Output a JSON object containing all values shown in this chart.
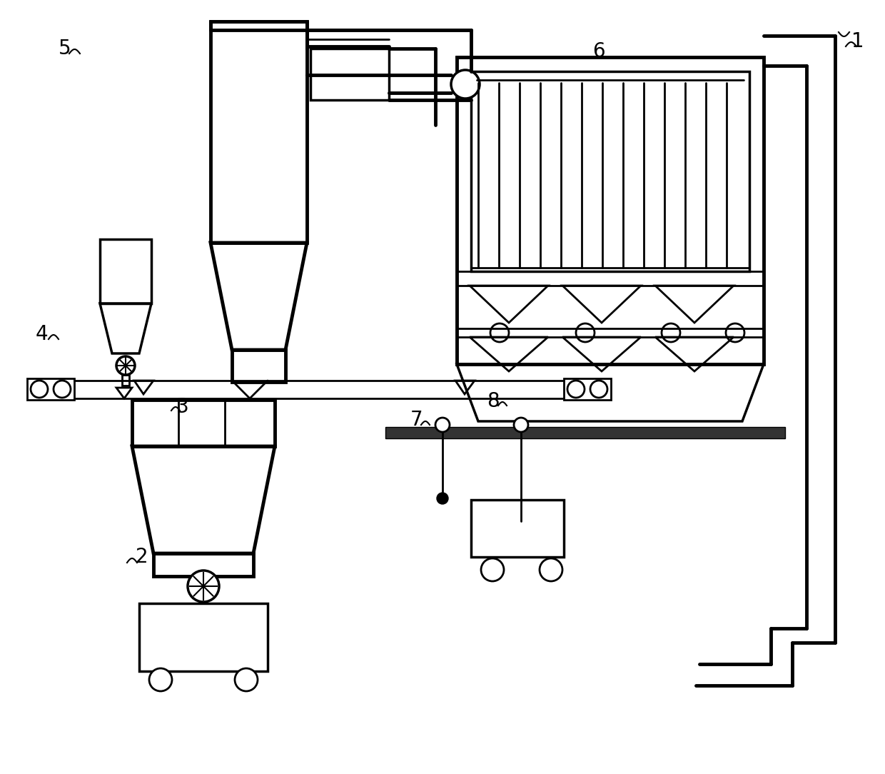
{
  "bg_color": "#ffffff",
  "lc": "#000000",
  "lw": 2.0,
  "lw3": 3.0,
  "lw4": 4.0
}
